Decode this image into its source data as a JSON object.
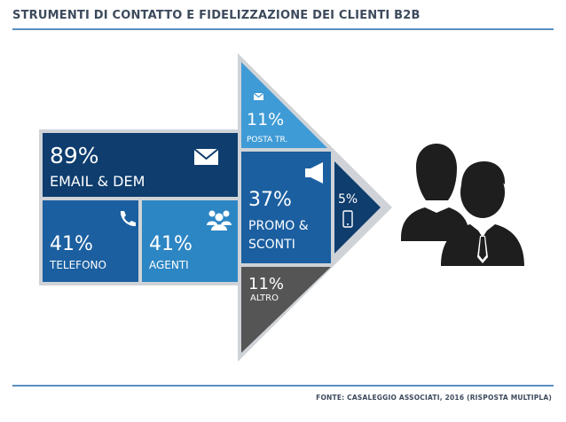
{
  "header": {
    "title": "STRUMENTI DI CONTATTO E FIDELIZZAZIONE DEI CLIENTI B2B"
  },
  "footer": {
    "source": "FONTE: CASALEGGIO ASSOCIATI, 2016 (RISPOSTA MULTIPLA)"
  },
  "segments": {
    "email": {
      "value": "89%",
      "label": "EMAIL & DEM",
      "icon": "envelope-icon",
      "color": "#0e3d6e"
    },
    "telefono": {
      "value": "41%",
      "label": "TELEFONO",
      "icon": "phone-icon",
      "color": "#1b5fa0"
    },
    "agenti": {
      "value": "41%",
      "label": "AGENTI",
      "icon": "people-icon",
      "color": "#2d86c4"
    },
    "posta": {
      "value": "11%",
      "label": "POSTA TR.",
      "icon": "envelope-icon",
      "color": "#3f9bd6"
    },
    "promo": {
      "value": "37%",
      "label_line1": "PROMO &",
      "label_line2": "SCONTI",
      "icon": "megaphone-icon",
      "color": "#1b5fa0"
    },
    "mobile": {
      "value": "5%",
      "icon": "smartphone-icon",
      "color": "#0e3d6e"
    },
    "altro": {
      "value": "11%",
      "label": "ALTRO",
      "color": "#555555"
    }
  },
  "figure": {
    "icon": "business-people-icon",
    "color": "#1e1e1e"
  }
}
